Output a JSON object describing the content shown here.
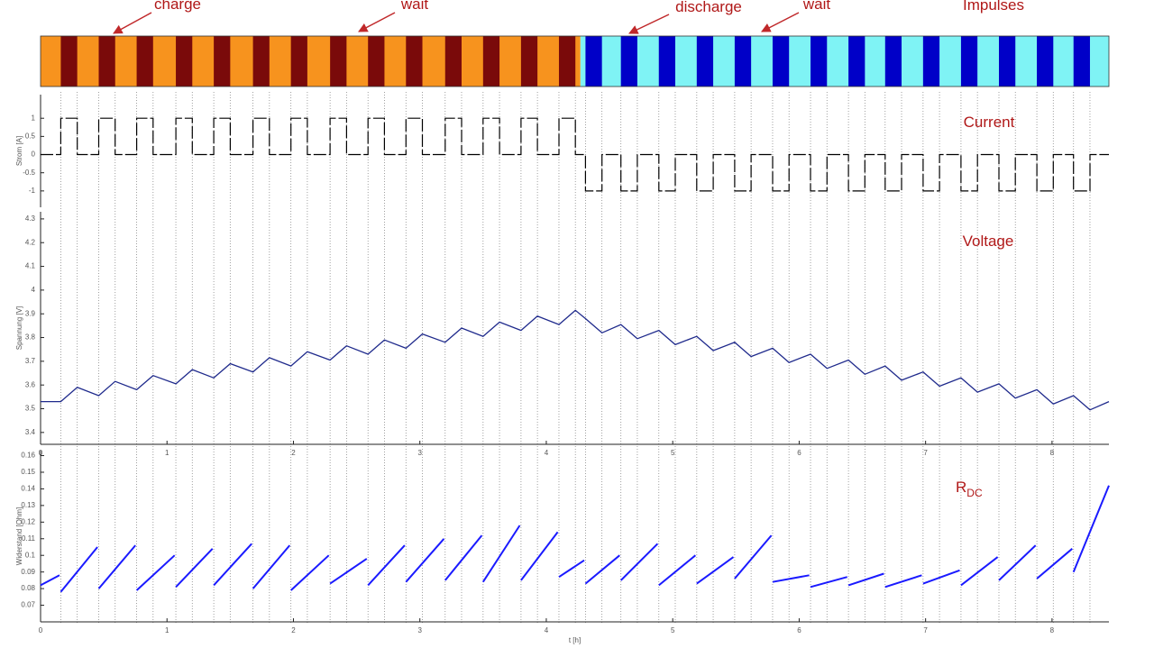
{
  "impulses": {
    "title": "Impulses",
    "pulse_duration": 0.13,
    "charge": {
      "range": [
        0,
        4.27
      ],
      "background": "#f7931e",
      "color": "#7a0a0a",
      "starts": [
        0.16,
        0.46,
        0.76,
        1.07,
        1.37,
        1.68,
        1.98,
        2.29,
        2.59,
        2.89,
        3.2,
        3.5,
        3.8,
        4.1
      ]
    },
    "discharge": {
      "range": [
        4.27,
        8.45
      ],
      "background": "#7ff3f5",
      "color": "#0000c8",
      "starts": [
        4.31,
        4.59,
        4.89,
        5.19,
        5.49,
        5.79,
        6.09,
        6.39,
        6.68,
        6.98,
        7.28,
        7.58,
        7.88,
        8.17
      ]
    }
  },
  "annotations": [
    "charge",
    "wait",
    "discharge",
    "wait"
  ],
  "chart_data": [
    {
      "type": "step",
      "title": "Current",
      "ylabel": "Strom [A]",
      "xlim": [
        0,
        8.45
      ],
      "ylim": [
        -1.45,
        1.65
      ],
      "yticks": [
        -1,
        -0.5,
        0,
        0.5,
        1
      ],
      "levels": {
        "charge": 1,
        "rest": 0,
        "discharge": -1
      },
      "color": "#000000"
    },
    {
      "type": "line",
      "title": "Voltage",
      "ylabel": "Spannung [V]",
      "xlim": [
        0,
        8.45
      ],
      "xticks": [
        0,
        1,
        2,
        3,
        4,
        5,
        6,
        7,
        8
      ],
      "ylim": [
        3.35,
        4.33
      ],
      "yticks": [
        3.4,
        3.5,
        3.6,
        3.7,
        3.8,
        3.9,
        4,
        4.1,
        4.2,
        4.3
      ],
      "color": "#1f2a8c",
      "x": [
        0,
        0.16,
        0.29,
        0.46,
        0.59,
        0.76,
        0.89,
        1.07,
        1.2,
        1.37,
        1.5,
        1.68,
        1.81,
        1.98,
        2.11,
        2.29,
        2.42,
        2.59,
        2.72,
        2.89,
        3.02,
        3.2,
        3.33,
        3.5,
        3.63,
        3.8,
        3.93,
        4.1,
        4.23,
        4.31,
        4.44,
        4.59,
        4.72,
        4.89,
        5.02,
        5.19,
        5.32,
        5.49,
        5.62,
        5.79,
        5.92,
        6.09,
        6.22,
        6.39,
        6.52,
        6.68,
        6.81,
        6.98,
        7.11,
        7.28,
        7.41,
        7.58,
        7.71,
        7.88,
        8.01,
        8.17,
        8.3,
        8.45
      ],
      "values": [
        3.53,
        3.53,
        3.59,
        3.555,
        3.615,
        3.58,
        3.64,
        3.605,
        3.665,
        3.63,
        3.69,
        3.655,
        3.715,
        3.68,
        3.74,
        3.705,
        3.765,
        3.73,
        3.79,
        3.755,
        3.815,
        3.78,
        3.84,
        3.805,
        3.865,
        3.83,
        3.89,
        3.855,
        3.915,
        3.88,
        3.82,
        3.855,
        3.795,
        3.83,
        3.77,
        3.805,
        3.745,
        3.78,
        3.72,
        3.755,
        3.695,
        3.73,
        3.67,
        3.705,
        3.645,
        3.68,
        3.62,
        3.655,
        3.595,
        3.63,
        3.57,
        3.605,
        3.545,
        3.58,
        3.52,
        3.555,
        3.495,
        3.53
      ]
    },
    {
      "type": "segments",
      "title": "R",
      "title_sub": "DC",
      "ylabel": "Widerstand [Ohm]",
      "xlabel": "t [h]",
      "xlim": [
        0,
        8.45
      ],
      "xticks": [
        0,
        1,
        2,
        3,
        4,
        5,
        6,
        7,
        8
      ],
      "ylim": [
        0.06,
        0.163
      ],
      "yticks": [
        0.07,
        0.08,
        0.09,
        0.1,
        0.11,
        0.12,
        0.13,
        0.14,
        0.15,
        0.16
      ],
      "color": "#1a1aff",
      "segments": [
        {
          "x": [
            0,
            0.15
          ],
          "values": [
            0.082,
            0.088
          ]
        },
        {
          "x": [
            0.16,
            0.45
          ],
          "values": [
            0.078,
            0.105
          ]
        },
        {
          "x": [
            0.46,
            0.75
          ],
          "values": [
            0.08,
            0.106
          ]
        },
        {
          "x": [
            0.76,
            1.06
          ],
          "values": [
            0.079,
            0.1
          ]
        },
        {
          "x": [
            1.07,
            1.36
          ],
          "values": [
            0.081,
            0.104
          ]
        },
        {
          "x": [
            1.37,
            1.67
          ],
          "values": [
            0.082,
            0.107
          ]
        },
        {
          "x": [
            1.68,
            1.97
          ],
          "values": [
            0.08,
            0.106
          ]
        },
        {
          "x": [
            1.98,
            2.28
          ],
          "values": [
            0.079,
            0.1
          ]
        },
        {
          "x": [
            2.29,
            2.58
          ],
          "values": [
            0.083,
            0.098
          ]
        },
        {
          "x": [
            2.59,
            2.88
          ],
          "values": [
            0.082,
            0.106
          ]
        },
        {
          "x": [
            2.89,
            3.19
          ],
          "values": [
            0.084,
            0.11
          ]
        },
        {
          "x": [
            3.2,
            3.49
          ],
          "values": [
            0.085,
            0.112
          ]
        },
        {
          "x": [
            3.5,
            3.79
          ],
          "values": [
            0.084,
            0.118
          ]
        },
        {
          "x": [
            3.8,
            4.09
          ],
          "values": [
            0.085,
            0.114
          ]
        },
        {
          "x": [
            4.1,
            4.3
          ],
          "values": [
            0.087,
            0.097
          ]
        },
        {
          "x": [
            4.31,
            4.58
          ],
          "values": [
            0.083,
            0.1
          ]
        },
        {
          "x": [
            4.59,
            4.88
          ],
          "values": [
            0.085,
            0.107
          ]
        },
        {
          "x": [
            4.89,
            5.18
          ],
          "values": [
            0.082,
            0.1
          ]
        },
        {
          "x": [
            5.19,
            5.48
          ],
          "values": [
            0.083,
            0.099
          ]
        },
        {
          "x": [
            5.49,
            5.78
          ],
          "values": [
            0.086,
            0.112
          ]
        },
        {
          "x": [
            5.79,
            6.08
          ],
          "values": [
            0.084,
            0.088
          ]
        },
        {
          "x": [
            6.09,
            6.38
          ],
          "values": [
            0.081,
            0.087
          ]
        },
        {
          "x": [
            6.39,
            6.67
          ],
          "values": [
            0.082,
            0.089
          ]
        },
        {
          "x": [
            6.68,
            6.97
          ],
          "values": [
            0.081,
            0.088
          ]
        },
        {
          "x": [
            6.98,
            7.27
          ],
          "values": [
            0.083,
            0.091
          ]
        },
        {
          "x": [
            7.28,
            7.57
          ],
          "values": [
            0.082,
            0.099
          ]
        },
        {
          "x": [
            7.58,
            7.87
          ],
          "values": [
            0.085,
            0.106
          ]
        },
        {
          "x": [
            7.88,
            8.16
          ],
          "values": [
            0.086,
            0.104
          ]
        },
        {
          "x": [
            8.17,
            8.45
          ],
          "values": [
            0.09,
            0.142
          ]
        }
      ]
    }
  ]
}
